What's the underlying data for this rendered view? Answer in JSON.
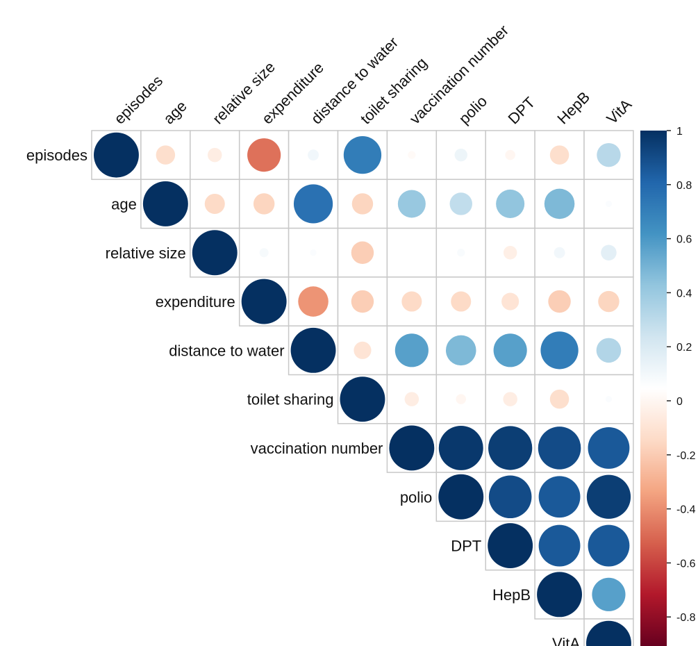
{
  "chart_data": {
    "type": "heatmap",
    "style": "corrplot-upper-circle",
    "title": "",
    "variables": [
      "episodes",
      "age",
      "relative size",
      "expenditure",
      "distance to water",
      "toilet sharing",
      "vaccination number",
      "polio",
      "DPT",
      "HepB",
      "VitA"
    ],
    "matrix": [
      [
        1.0,
        -0.18,
        -0.1,
        -0.55,
        0.06,
        0.7,
        -0.03,
        0.08,
        -0.05,
        -0.18,
        0.28
      ],
      [
        -0.18,
        1.0,
        -0.2,
        -0.22,
        0.75,
        -0.22,
        0.38,
        0.25,
        0.4,
        0.45,
        0.02
      ],
      [
        -0.1,
        -0.2,
        1.0,
        0.04,
        0.02,
        -0.25,
        0.0,
        0.03,
        -0.09,
        0.06,
        0.12
      ],
      [
        -0.55,
        -0.22,
        0.04,
        1.0,
        -0.45,
        -0.25,
        -0.2,
        -0.2,
        -0.15,
        -0.25,
        -0.22
      ],
      [
        0.06,
        0.75,
        0.02,
        -0.45,
        1.0,
        -0.15,
        0.55,
        0.45,
        0.55,
        0.7,
        0.3
      ],
      [
        0.7,
        -0.22,
        -0.25,
        -0.25,
        -0.15,
        1.0,
        -0.1,
        -0.05,
        -0.1,
        -0.18,
        0.02
      ],
      [
        -0.03,
        0.38,
        0.0,
        -0.2,
        0.55,
        -0.1,
        1.0,
        0.97,
        0.95,
        0.9,
        0.85
      ],
      [
        0.08,
        0.25,
        0.03,
        -0.2,
        0.45,
        -0.05,
        0.97,
        1.0,
        0.9,
        0.85,
        0.95
      ],
      [
        -0.05,
        0.4,
        -0.09,
        -0.15,
        0.55,
        -0.1,
        0.95,
        0.9,
        1.0,
        0.85,
        0.85
      ],
      [
        -0.18,
        0.45,
        0.06,
        -0.25,
        0.7,
        -0.18,
        0.9,
        0.85,
        0.85,
        1.0,
        0.55
      ],
      [
        0.28,
        0.02,
        0.12,
        -0.22,
        0.3,
        0.02,
        0.85,
        0.95,
        0.85,
        0.55,
        1.0
      ]
    ],
    "colorbar": {
      "range": [
        -1,
        1
      ],
      "ticks": [
        "1",
        "0.8",
        "0.6",
        "0.4",
        "0.2",
        "0",
        "-0.2",
        "-0.4",
        "-0.6",
        "-0.8"
      ],
      "colors": [
        "#67001F",
        "#B2182B",
        "#D6604D",
        "#F4A582",
        "#FDDBC7",
        "#FFFFFF",
        "#D1E5F0",
        "#92C5DE",
        "#4393C3",
        "#2166AC",
        "#053061"
      ]
    },
    "grid": true,
    "legend_position": "right"
  }
}
